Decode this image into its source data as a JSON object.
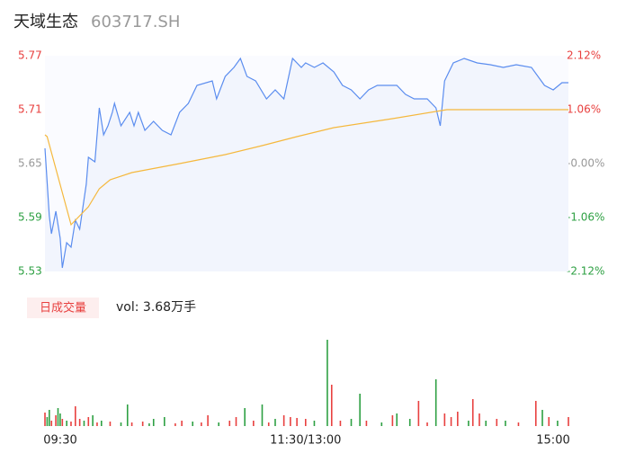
{
  "header": {
    "title": "天域生态",
    "code": "603717.SH"
  },
  "chart_data": [
    {
      "type": "line",
      "xlim": [
        0,
        241
      ],
      "xticks": [
        {
          "value": 0,
          "label": "09:30"
        },
        {
          "value": 120,
          "label": "11:30/13:00"
        },
        {
          "value": 241,
          "label": "15:00"
        }
      ],
      "ylim": [
        5.53,
        5.77
      ],
      "yticks": [
        5.77,
        5.71,
        5.65,
        5.59,
        5.53
      ],
      "y2lim": [
        -2.12,
        2.12
      ],
      "y2ticks": [
        {
          "value": 2.12,
          "label": "2.12%"
        },
        {
          "value": 1.06,
          "label": "1.06%"
        },
        {
          "value": 0,
          "label": "-0.00%"
        },
        {
          "value": -1.06,
          "label": "-1.06%"
        },
        {
          "value": -2.12,
          "label": "-2.12%"
        }
      ],
      "series": [
        {
          "color": "#5b8def",
          "x": [
            0,
            2,
            3,
            5,
            7,
            8,
            10,
            12,
            14,
            16,
            19,
            20,
            23,
            25,
            27,
            29,
            31,
            32,
            35,
            39,
            41,
            43,
            46,
            50,
            54,
            58,
            62,
            66,
            70,
            77,
            79,
            83,
            87,
            90,
            93,
            97,
            102,
            106,
            110,
            114,
            118,
            120,
            124,
            128,
            133,
            137,
            141,
            145,
            149,
            153,
            162,
            166,
            170,
            176,
            180,
            182,
            184,
            188,
            193,
            199,
            205,
            211,
            217,
            224,
            230,
            234,
            238,
            241
          ],
          "values": [
            5.667,
            5.592,
            5.572,
            5.597,
            5.567,
            5.534,
            5.562,
            5.557,
            5.587,
            5.577,
            5.627,
            5.657,
            5.652,
            5.712,
            5.682,
            5.692,
            5.707,
            5.717,
            5.692,
            5.707,
            5.692,
            5.707,
            5.687,
            5.697,
            5.687,
            5.682,
            5.707,
            5.717,
            5.737,
            5.742,
            5.722,
            5.747,
            5.757,
            5.767,
            5.747,
            5.742,
            5.722,
            5.732,
            5.722,
            5.767,
            5.757,
            5.762,
            5.757,
            5.762,
            5.752,
            5.737,
            5.732,
            5.722,
            5.732,
            5.737,
            5.737,
            5.727,
            5.722,
            5.722,
            5.712,
            5.692,
            5.742,
            5.762,
            5.767,
            5.762,
            5.76,
            5.757,
            5.76,
            5.757,
            5.737,
            5.732,
            5.74,
            5.74
          ]
        },
        {
          "color": "#f5b83d",
          "x": [
            0,
            1,
            12,
            20,
            25,
            30,
            40,
            62,
            83,
            100,
            116,
            133,
            160,
            185,
            241
          ],
          "values": [
            5.682,
            5.68,
            5.582,
            5.602,
            5.622,
            5.632,
            5.64,
            5.65,
            5.66,
            5.67,
            5.68,
            5.69,
            5.7,
            5.71,
            5.71
          ]
        }
      ]
    },
    {
      "type": "bar",
      "tag": "日成交量",
      "label": "vol: 3.68万手",
      "x": [
        0,
        1,
        2,
        3,
        5,
        6,
        7,
        8,
        10,
        12,
        14,
        16,
        18,
        20,
        22,
        24,
        26,
        30,
        35,
        38,
        40,
        45,
        48,
        50,
        55,
        60,
        63,
        68,
        72,
        75,
        80,
        85,
        88,
        92,
        96,
        100,
        103,
        106,
        110,
        113,
        116,
        120,
        124,
        130,
        132,
        136,
        141,
        145,
        148,
        155,
        160,
        162,
        168,
        172,
        176,
        180,
        184,
        187,
        190,
        195,
        197,
        200,
        203,
        208,
        212,
        218,
        226,
        229,
        232,
        236,
        241
      ],
      "values": [
        15,
        10,
        18,
        6,
        12,
        20,
        14,
        8,
        6,
        5,
        22,
        8,
        6,
        10,
        12,
        4,
        6,
        5,
        4,
        24,
        4,
        5,
        3,
        8,
        10,
        3,
        6,
        5,
        4,
        12,
        4,
        6,
        10,
        20,
        6,
        24,
        4,
        8,
        12,
        10,
        9,
        8,
        6,
        96,
        46,
        6,
        8,
        36,
        6,
        4,
        12,
        14,
        8,
        28,
        4,
        52,
        14,
        10,
        16,
        6,
        30,
        14,
        6,
        8,
        6,
        4,
        28,
        18,
        10,
        6,
        10
      ],
      "colors": [
        "#e8403f",
        "#2ea043",
        "#2ea043",
        "#e8403f",
        "#e8403f",
        "#2ea043",
        "#2ea043",
        "#e8403f",
        "#2ea043",
        "#e8403f",
        "#e8403f",
        "#e8403f",
        "#2ea043",
        "#e8403f",
        "#2ea043",
        "#e8403f",
        "#2ea043",
        "#e8403f",
        "#2ea043",
        "#2ea043",
        "#e8403f",
        "#e8403f",
        "#2ea043",
        "#2ea043",
        "#2ea043",
        "#e8403f",
        "#e8403f",
        "#2ea043",
        "#e8403f",
        "#e8403f",
        "#2ea043",
        "#e8403f",
        "#e8403f",
        "#2ea043",
        "#e8403f",
        "#2ea043",
        "#e8403f",
        "#2ea043",
        "#e8403f",
        "#e8403f",
        "#e8403f",
        "#e8403f",
        "#2ea043",
        "#2ea043",
        "#e8403f",
        "#e8403f",
        "#2ea043",
        "#2ea043",
        "#e8403f",
        "#2ea043",
        "#e8403f",
        "#2ea043",
        "#2ea043",
        "#e8403f",
        "#e8403f",
        "#2ea043",
        "#e8403f",
        "#e8403f",
        "#e8403f",
        "#2ea043",
        "#e8403f",
        "#e8403f",
        "#2ea043",
        "#e8403f",
        "#2ea043",
        "#e8403f",
        "#e8403f",
        "#2ea043",
        "#e8403f",
        "#2ea043",
        "#e8403f"
      ]
    }
  ]
}
